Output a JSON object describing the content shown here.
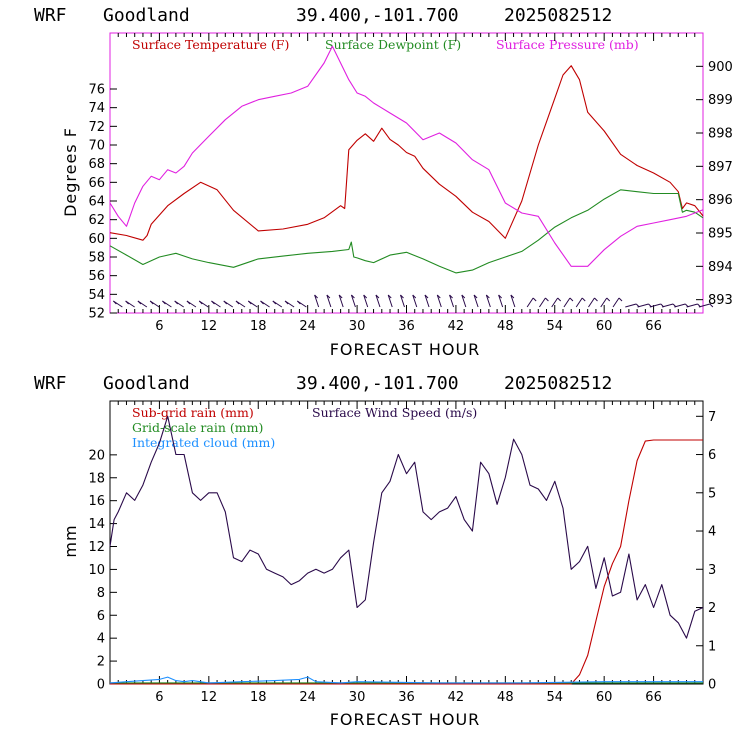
{
  "top": {
    "header": {
      "model": "WRF",
      "station": "Goodland",
      "coords": "39.400,-101.700",
      "run": "2025082512"
    },
    "legend": [
      {
        "label": "Surface Temperature (F)",
        "color": "#c00000"
      },
      {
        "label": "Surface Dewpoint (F)",
        "color": "#228b22"
      },
      {
        "label": "Surface Pressure (mb)",
        "color": "#e020e0"
      }
    ],
    "xlabel": "FORECAST HOUR",
    "ylabel": "Degrees F"
  },
  "bottom": {
    "header": {
      "model": "WRF",
      "station": "Goodland",
      "coords": "39.400,-101.700",
      "run": "2025082512"
    },
    "legend": [
      {
        "label": "Sub-grid rain (mm)",
        "color": "#c00000"
      },
      {
        "label": "Grid-scale rain (mm)",
        "color": "#228b22"
      },
      {
        "label": "Integrated cloud (mm)",
        "color": "#1e90ff"
      },
      {
        "label": "Surface Wind Speed (m/s)",
        "color": "#2a0a4a"
      }
    ],
    "xlabel": "FORECAST HOUR",
    "ylabel": "mm"
  },
  "chart_data": [
    {
      "type": "line",
      "x_ticks": [
        6,
        12,
        18,
        24,
        30,
        36,
        42,
        48,
        54,
        60,
        66
      ],
      "xlim": [
        0,
        72
      ],
      "y_left": {
        "ticks": [
          52,
          54,
          56,
          58,
          60,
          62,
          64,
          66,
          68,
          70,
          72,
          74,
          76
        ],
        "lim": [
          52,
          82
        ]
      },
      "y_right": {
        "ticks": [
          893,
          894,
          895,
          896,
          897,
          898,
          899,
          900
        ],
        "lim": [
          892.6,
          901.0
        ]
      },
      "series": [
        {
          "name": "Surface Temperature (F)",
          "color": "#c00000",
          "axis": "left",
          "x": [
            0,
            2,
            4,
            4.5,
            5,
            7,
            9,
            11,
            13,
            15,
            18,
            21,
            24,
            26,
            28,
            28.5,
            29,
            30,
            31,
            32,
            33,
            34,
            35,
            36,
            37,
            38,
            40,
            42,
            44,
            46,
            48,
            50,
            52,
            54,
            55,
            56,
            57,
            58,
            60,
            62,
            64,
            66,
            68,
            69,
            69.5,
            70,
            71,
            72
          ],
          "y": [
            60.6,
            60.3,
            59.8,
            60.3,
            61.5,
            63.5,
            64.8,
            66.0,
            65.2,
            63.0,
            60.8,
            61.0,
            61.5,
            62.2,
            63.5,
            63.2,
            69.5,
            70.5,
            71.2,
            70.4,
            71.8,
            70.6,
            70.0,
            69.2,
            68.8,
            67.5,
            65.8,
            64.5,
            62.8,
            61.8,
            60.0,
            64.0,
            70.0,
            75.0,
            77.5,
            78.5,
            77.0,
            73.5,
            71.5,
            69.0,
            67.8,
            67.0,
            66.0,
            65.0,
            63.2,
            63.8,
            63.5,
            62.4
          ]
        },
        {
          "name": "Surface Dewpoint (F)",
          "color": "#228b22",
          "axis": "left",
          "x": [
            0,
            2,
            4,
            6,
            8,
            10,
            12,
            15,
            18,
            21,
            24,
            27,
            29,
            29.3,
            29.6,
            30,
            31,
            32,
            34,
            36,
            38,
            40,
            42,
            44,
            46,
            48,
            50,
            52,
            54,
            56,
            58,
            60,
            62,
            64,
            66,
            68,
            69,
            69.5,
            70,
            71,
            72
          ],
          "y": [
            59.2,
            58.2,
            57.2,
            58.0,
            58.4,
            57.8,
            57.4,
            56.9,
            57.8,
            58.1,
            58.4,
            58.6,
            58.8,
            59.6,
            58.0,
            57.9,
            57.6,
            57.4,
            58.2,
            58.5,
            57.8,
            57.0,
            56.3,
            56.6,
            57.4,
            58.0,
            58.6,
            59.8,
            61.2,
            62.2,
            63.0,
            64.2,
            65.2,
            65.0,
            64.8,
            64.8,
            64.8,
            62.8,
            63.0,
            62.8,
            62.2
          ]
        },
        {
          "name": "Surface Pressure (mb)",
          "color": "#e020e0",
          "axis": "right",
          "x": [
            0,
            1,
            2,
            3,
            4,
            5,
            6,
            7,
            8,
            9,
            10,
            12,
            14,
            16,
            18,
            20,
            22,
            24,
            26,
            27,
            28,
            29,
            30,
            31,
            32,
            34,
            36,
            38,
            40,
            42,
            44,
            46,
            48,
            50,
            52,
            54,
            56,
            58,
            60,
            62,
            64,
            66,
            68,
            70,
            72
          ],
          "y": [
            895.9,
            895.5,
            895.2,
            895.9,
            896.4,
            896.7,
            896.6,
            896.9,
            896.8,
            897.0,
            897.4,
            897.9,
            898.4,
            898.8,
            899.0,
            899.1,
            899.2,
            899.4,
            900.1,
            900.6,
            900.1,
            899.6,
            899.2,
            899.1,
            898.9,
            898.6,
            898.3,
            897.8,
            898.0,
            897.7,
            897.2,
            896.9,
            895.9,
            895.6,
            895.5,
            894.7,
            894.0,
            894.0,
            894.5,
            894.9,
            895.2,
            895.3,
            895.4,
            895.5,
            895.7
          ]
        }
      ],
      "wind_barbs": {
        "count": 48,
        "first_hour": 1.5,
        "last_hour": 71.5
      }
    },
    {
      "type": "line",
      "x_ticks": [
        6,
        12,
        18,
        24,
        30,
        36,
        42,
        48,
        54,
        60,
        66
      ],
      "xlim": [
        0,
        72
      ],
      "y_left": {
        "ticks": [
          0,
          2,
          4,
          6,
          8,
          10,
          12,
          14,
          16,
          18,
          20
        ],
        "lim": [
          0,
          24.7
        ]
      },
      "y_right": {
        "ticks": [
          0,
          1,
          2,
          3,
          4,
          5,
          6,
          7
        ],
        "lim": [
          0,
          7.4
        ]
      },
      "series": [
        {
          "name": "Sub-grid rain (mm)",
          "color": "#c00000",
          "axis": "left",
          "x": [
            0,
            56,
            57,
            58,
            59,
            60,
            61,
            62,
            63,
            64,
            65,
            66,
            68,
            70,
            72
          ],
          "y": [
            0,
            0,
            0.8,
            2.5,
            5.5,
            8.5,
            10.5,
            12.0,
            16.0,
            19.5,
            21.2,
            21.3,
            21.3,
            21.3,
            21.3
          ]
        },
        {
          "name": "Grid-scale rain (mm)",
          "color": "#228b22",
          "axis": "left",
          "x": [
            0,
            72
          ],
          "y": [
            0.1,
            0.1
          ]
        },
        {
          "name": "Integrated cloud (mm)",
          "color": "#1e90ff",
          "axis": "left",
          "x": [
            0,
            2,
            4,
            6,
            7,
            8,
            9,
            10,
            12,
            16,
            20,
            23,
            24,
            25,
            28,
            30,
            40,
            50,
            60,
            72
          ],
          "y": [
            0.1,
            0.2,
            0.3,
            0.4,
            0.6,
            0.3,
            0.2,
            0.3,
            0.1,
            0.2,
            0.3,
            0.4,
            0.6,
            0.2,
            0.1,
            0.2,
            0.1,
            0.1,
            0.2,
            0.2
          ]
        },
        {
          "name": "Surface Wind Speed (m/s)",
          "color": "#2a0a4a",
          "axis": "right",
          "x": [
            0,
            0.5,
            1,
            2,
            3,
            4,
            5,
            6,
            7,
            8,
            9,
            10,
            11,
            12,
            13,
            14,
            15,
            16,
            17,
            18,
            19,
            20,
            21,
            22,
            23,
            24,
            25,
            26,
            27,
            28,
            29,
            30,
            31,
            32,
            33,
            34,
            35,
            36,
            37,
            38,
            39,
            40,
            41,
            42,
            43,
            44,
            45,
            46,
            47,
            48,
            49,
            50,
            51,
            52,
            53,
            54,
            55,
            56,
            57,
            58,
            59,
            60,
            61,
            62,
            63,
            64,
            65,
            66,
            67,
            68,
            69,
            70,
            71,
            72
          ],
          "y": [
            3.6,
            4.3,
            4.5,
            5.0,
            4.8,
            5.2,
            5.8,
            6.3,
            7.0,
            6.0,
            6.0,
            5.0,
            4.8,
            5.0,
            5.0,
            4.5,
            3.3,
            3.2,
            3.5,
            3.4,
            3.0,
            2.9,
            2.8,
            2.6,
            2.7,
            2.9,
            3.0,
            2.9,
            3.0,
            3.3,
            3.5,
            2.0,
            2.2,
            3.7,
            5.0,
            5.3,
            6.0,
            5.5,
            5.8,
            4.5,
            4.3,
            4.5,
            4.6,
            4.9,
            4.3,
            4.0,
            5.8,
            5.5,
            4.7,
            5.4,
            6.4,
            6.0,
            5.2,
            5.1,
            4.8,
            5.3,
            4.6,
            3.0,
            3.2,
            3.6,
            2.5,
            3.3,
            2.3,
            2.4,
            3.4,
            2.2,
            2.6,
            2.0,
            2.6,
            1.8,
            1.6,
            1.2,
            1.9,
            2.0
          ]
        }
      ]
    }
  ]
}
